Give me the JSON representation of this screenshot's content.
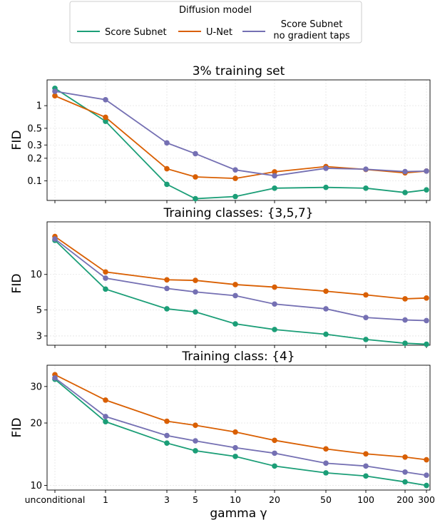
{
  "legend": {
    "title": "Diffusion model",
    "entries": [
      {
        "label": "Score Subnet",
        "color": "#1b9e77"
      },
      {
        "label": "U-Net",
        "color": "#d95f02"
      },
      {
        "label_lines": [
          "Score Subnet",
          "no gradient taps"
        ],
        "color": "#7570b3"
      }
    ]
  },
  "chart_data": [
    {
      "type": "line",
      "title": "3% training set",
      "ylabel": "FID",
      "xlabel": "",
      "x_scale": "symlog-like (unconditional at left)",
      "y_scale": "log",
      "ylim": [
        0.055,
        2.2
      ],
      "yticks": [
        0.1,
        0.2,
        0.3,
        0.5,
        1
      ],
      "ytick_labels": [
        "0.1",
        "0.2",
        "0.3",
        "0.5",
        "1"
      ],
      "categories": [
        "unconditional",
        "1",
        "3",
        "5",
        "10",
        "20",
        "50",
        "100",
        "200",
        "300"
      ],
      "grid": true,
      "series": [
        {
          "name": "Score Subnet",
          "color": "#1b9e77",
          "values": [
            1.7,
            0.62,
            0.09,
            0.058,
            0.062,
            0.08,
            0.082,
            0.08,
            0.07,
            0.076
          ]
        },
        {
          "name": "U-Net",
          "color": "#d95f02",
          "values": [
            1.35,
            0.7,
            0.145,
            0.113,
            0.108,
            0.132,
            0.155,
            0.142,
            0.128,
            0.135
          ]
        },
        {
          "name": "Score Subnet no gradient taps",
          "color": "#7570b3",
          "values": [
            1.55,
            1.2,
            0.32,
            0.23,
            0.14,
            0.117,
            0.147,
            0.143,
            0.133,
            0.135
          ]
        }
      ]
    },
    {
      "type": "line",
      "title": "Training classes: {3,5,7}",
      "ylabel": "FID",
      "xlabel": "",
      "y_scale": "log",
      "ylim": [
        2.5,
        28
      ],
      "yticks": [
        3,
        5,
        10
      ],
      "ytick_labels": [
        "3",
        "5",
        "10"
      ],
      "categories": [
        "unconditional",
        "1",
        "3",
        "5",
        "10",
        "20",
        "50",
        "100",
        "200",
        "300"
      ],
      "grid": true,
      "series": [
        {
          "name": "Score Subnet",
          "color": "#1b9e77",
          "values": [
            19.5,
            7.5,
            5.1,
            4.8,
            3.8,
            3.4,
            3.1,
            2.8,
            2.6,
            2.55
          ]
        },
        {
          "name": "U-Net",
          "color": "#d95f02",
          "values": [
            21,
            10.5,
            9.0,
            8.9,
            8.2,
            7.8,
            7.2,
            6.7,
            6.2,
            6.3
          ]
        },
        {
          "name": "Score Subnet no gradient taps",
          "color": "#7570b3",
          "values": [
            20,
            9.3,
            7.6,
            7.1,
            6.6,
            5.6,
            5.1,
            4.3,
            4.1,
            4.05
          ]
        }
      ]
    },
    {
      "type": "line",
      "title": "Training class: {4}",
      "ylabel": "FID",
      "xlabel": "gamma γ",
      "y_scale": "log",
      "ylim": [
        9.5,
        38
      ],
      "yticks": [
        10,
        20,
        30
      ],
      "ytick_labels": [
        "10",
        "20",
        "30"
      ],
      "categories": [
        "unconditional",
        "1",
        "3",
        "5",
        "10",
        "20",
        "50",
        "100",
        "200",
        "300"
      ],
      "xtick_labels": [
        "unconditional",
        "1",
        "3",
        "5",
        "10",
        "20",
        "50",
        "100",
        "200",
        "300"
      ],
      "grid": true,
      "series": [
        {
          "name": "Score Subnet",
          "color": "#1b9e77",
          "values": [
            32.5,
            20.3,
            16.0,
            14.7,
            13.8,
            12.4,
            11.5,
            11.1,
            10.4,
            10.0
          ]
        },
        {
          "name": "U-Net",
          "color": "#d95f02",
          "values": [
            34.2,
            25.8,
            20.4,
            19.5,
            18.1,
            16.5,
            15.0,
            14.2,
            13.7,
            13.3
          ]
        },
        {
          "name": "Score Subnet no gradient taps",
          "color": "#7570b3",
          "values": [
            33.0,
            21.5,
            17.4,
            16.4,
            15.2,
            14.3,
            12.8,
            12.4,
            11.6,
            11.2
          ]
        }
      ]
    }
  ]
}
